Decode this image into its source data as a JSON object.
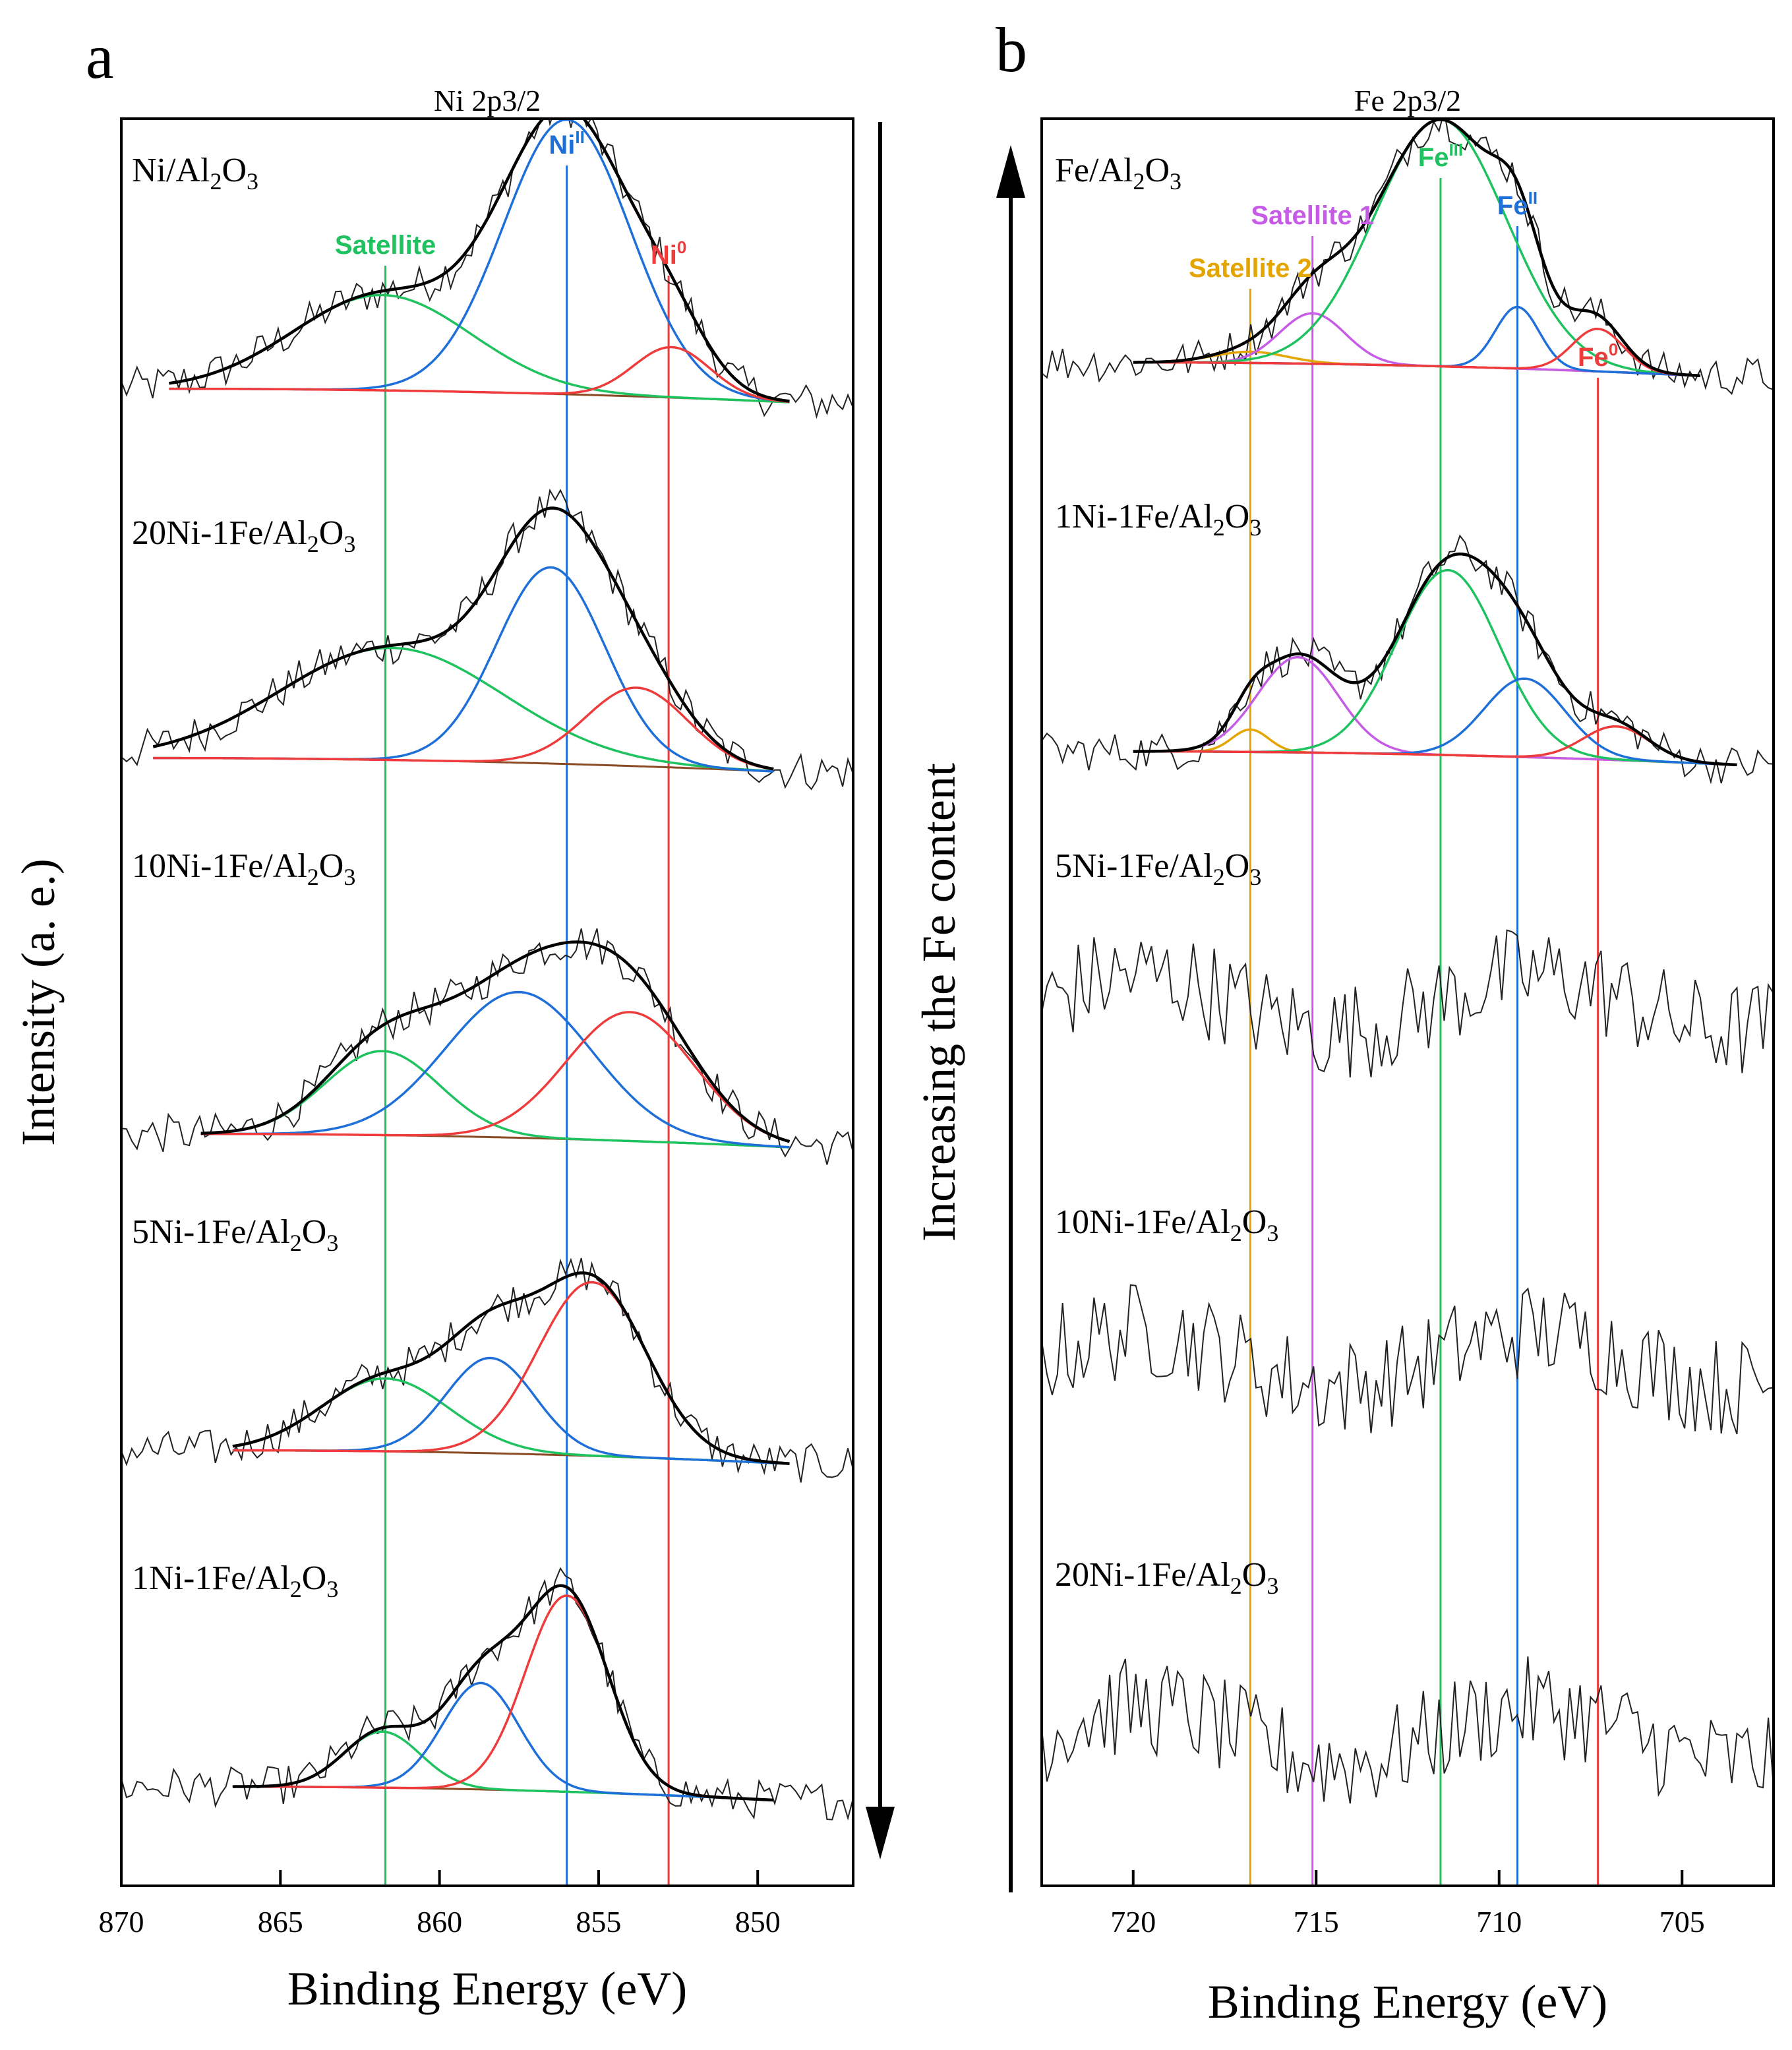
{
  "figure": {
    "axis_title_y": "Intensity (a. e.)",
    "arrow_label": "Increasing the Fe content"
  },
  "colors": {
    "satellite_green": "#1ec25e",
    "blue": "#1f6fd8",
    "red": "#ee3b3b",
    "satellite2_orange": "#e5a500",
    "satellite1_violet": "#c65ce6",
    "raw": "#222222",
    "envelope": "#000000",
    "background_line": "#8a4a24"
  },
  "chart_data": [
    {
      "panel_letter": "a",
      "type": "line",
      "title": "Ni 2p3/2",
      "xlabel": "Binding Energy (eV)",
      "ylabel": "Intensity (a. e.)",
      "xlim": [
        870,
        847
      ],
      "x_reversed": true,
      "xticks": [
        870,
        865,
        860,
        855,
        850
      ],
      "grid": false,
      "reference_lines": [
        {
          "name": "Satellite",
          "x": 861.7,
          "color": "#1ec25e"
        },
        {
          "name": "Ni",
          "sup": "II",
          "x": 856.0,
          "color": "#1f6fd8"
        },
        {
          "name": "Ni",
          "sup": "0",
          "x": 852.8,
          "color": "#ee3b3b"
        }
      ],
      "spectra": [
        {
          "label_main": "Ni/Al",
          "label_sub1": "2",
          "label_mid": "O",
          "label_sub2": "3",
          "fit_range": [
            868.5,
            849.0
          ],
          "components": [
            {
              "name": "Satellite",
              "center": 861.8,
              "height": 0.85,
              "width": 2.8,
              "color": "#1ec25e"
            },
            {
              "name": "NiII",
              "center": 856.0,
              "height": 2.45,
              "width": 2.0,
              "color": "#1f6fd8"
            },
            {
              "name": "Ni0",
              "center": 852.7,
              "height": 0.45,
              "width": 1.2,
              "color": "#ee3b3b"
            }
          ]
        },
        {
          "label_main": "20Ni-1Fe/Al",
          "label_sub1": "2",
          "label_mid": "O",
          "label_sub2": "3",
          "fit_range": [
            869.0,
            849.5
          ],
          "components": [
            {
              "name": "Satellite",
              "center": 861.5,
              "height": 1.0,
              "width": 3.5,
              "color": "#1ec25e"
            },
            {
              "name": "NiII",
              "center": 856.5,
              "height": 1.75,
              "width": 1.7,
              "color": "#1f6fd8"
            },
            {
              "name": "Ni0",
              "center": 853.8,
              "height": 0.7,
              "width": 1.6,
              "color": "#ee3b3b"
            }
          ]
        },
        {
          "label_main": "10Ni-1Fe/Al",
          "label_sub1": "2",
          "label_mid": "O",
          "label_sub2": "3",
          "fit_range": [
            867.5,
            849.0
          ],
          "components": [
            {
              "name": "Satellite",
              "center": 861.8,
              "height": 0.75,
              "width": 1.8,
              "color": "#1ec25e"
            },
            {
              "name": "NiII",
              "center": 857.5,
              "height": 1.3,
              "width": 2.3,
              "color": "#1f6fd8"
            },
            {
              "name": "Ni0",
              "center": 854.0,
              "height": 1.15,
              "width": 2.0,
              "color": "#ee3b3b"
            }
          ]
        },
        {
          "label_main": "5Ni-1Fe/Al",
          "label_sub1": "2",
          "label_mid": "O",
          "label_sub2": "3",
          "fit_range": [
            866.5,
            849.0
          ],
          "components": [
            {
              "name": "Satellite",
              "center": 861.7,
              "height": 0.65,
              "width": 2.0,
              "color": "#1ec25e"
            },
            {
              "name": "NiII",
              "center": 858.4,
              "height": 0.85,
              "width": 1.4,
              "color": "#1f6fd8"
            },
            {
              "name": "Ni0",
              "center": 855.2,
              "height": 1.55,
              "width": 1.7,
              "color": "#ee3b3b"
            }
          ]
        },
        {
          "label_main": "1Ni-1Fe/Al",
          "label_sub1": "2",
          "label_mid": "O",
          "label_sub2": "3",
          "fit_range": [
            866.5,
            849.5
          ],
          "components": [
            {
              "name": "Satellite",
              "center": 861.8,
              "height": 0.5,
              "width": 1.2,
              "color": "#1ec25e"
            },
            {
              "name": "NiII",
              "center": 858.7,
              "height": 0.95,
              "width": 1.2,
              "color": "#1f6fd8"
            },
            {
              "name": "Ni0",
              "center": 856.0,
              "height": 1.75,
              "width": 1.3,
              "color": "#ee3b3b"
            }
          ]
        }
      ]
    },
    {
      "panel_letter": "b",
      "type": "line",
      "title": "Fe 2p3/2",
      "xlabel": "Binding Energy (eV)",
      "xlim": [
        722.5,
        702.5
      ],
      "x_reversed": true,
      "xticks": [
        720,
        715,
        710,
        705
      ],
      "grid": false,
      "reference_lines": [
        {
          "name": "Satellite 2",
          "x": 716.8,
          "color": "#e5a500"
        },
        {
          "name": "Satellite 1",
          "x": 715.1,
          "color": "#c65ce6"
        },
        {
          "name": "Fe",
          "sup": "III",
          "x": 711.6,
          "color": "#1ec25e"
        },
        {
          "name": "Fe",
          "sup": "II",
          "x": 709.5,
          "color": "#1f6fd8"
        },
        {
          "name": "Fe",
          "sup": "0",
          "x": 707.3,
          "color": "#ee3b3b"
        }
      ],
      "spectra": [
        {
          "label_main": "Fe/Al",
          "label_sub1": "2",
          "label_mid": "O",
          "label_sub2": "3",
          "fit_range": [
            720.0,
            704.5
          ],
          "components": [
            {
              "name": "Satellite 2",
              "center": 716.8,
              "height": 0.1,
              "width": 1.0,
              "color": "#e5a500"
            },
            {
              "name": "Satellite 1",
              "center": 715.1,
              "height": 0.45,
              "width": 0.9,
              "color": "#c65ce6"
            },
            {
              "name": "FeIII",
              "center": 711.6,
              "height": 2.2,
              "width": 1.8,
              "color": "#1ec25e"
            },
            {
              "name": "FeII",
              "center": 709.5,
              "height": 0.55,
              "width": 0.6,
              "color": "#1f6fd8"
            },
            {
              "name": "Fe0",
              "center": 707.3,
              "height": 0.38,
              "width": 0.7,
              "color": "#ee3b3b"
            }
          ]
        },
        {
          "label_main": "1Ni-1Fe/Al",
          "label_sub1": "2",
          "label_mid": "O",
          "label_sub2": "3",
          "fit_range": [
            720.0,
            703.5
          ],
          "components": [
            {
              "name": "Satellite 2",
              "center": 716.8,
              "height": 0.2,
              "width": 0.5,
              "color": "#e5a500"
            },
            {
              "name": "Satellite 1",
              "center": 715.5,
              "height": 0.85,
              "width": 1.1,
              "color": "#c65ce6"
            },
            {
              "name": "FeIII",
              "center": 711.4,
              "height": 1.65,
              "width": 1.4,
              "color": "#1ec25e"
            },
            {
              "name": "FeII",
              "center": 709.3,
              "height": 0.7,
              "width": 1.1,
              "color": "#1f6fd8"
            },
            {
              "name": "Fe0",
              "center": 706.8,
              "height": 0.3,
              "width": 0.9,
              "color": "#ee3b3b"
            }
          ]
        },
        {
          "label_main": "5Ni-1Fe/Al",
          "label_sub1": "2",
          "label_mid": "O",
          "label_sub2": "3",
          "noise_only": true
        },
        {
          "label_main": "10Ni-1Fe/Al",
          "label_sub1": "2",
          "label_mid": "O",
          "label_sub2": "3",
          "noise_only": true
        },
        {
          "label_main": "20Ni-1Fe/Al",
          "label_sub1": "2",
          "label_mid": "O",
          "label_sub2": "3",
          "noise_only": true
        }
      ]
    }
  ]
}
